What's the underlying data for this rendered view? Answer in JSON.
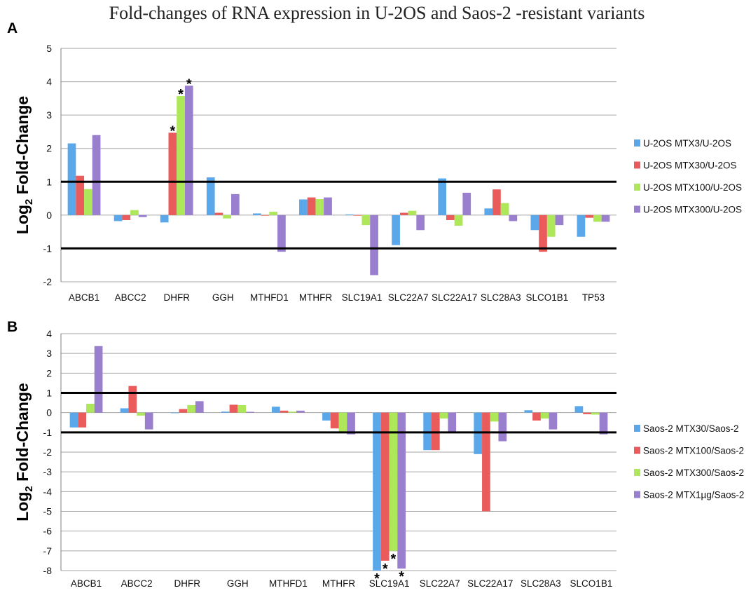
{
  "title": "Fold-changes of RNA expression in U-2OS and Saos-2 -resistant variants",
  "colors": {
    "blue": "#5aa7ea",
    "red": "#ea5b5b",
    "green": "#aee85a",
    "purple": "#9b7fcf",
    "grid": "#a6a6a6",
    "axis": "#7f7f7f",
    "threshold": "#000000"
  },
  "chart_data": [
    {
      "type": "bar",
      "panel": "A",
      "ylabel_main": "Log",
      "ylabel_sub": "2",
      "ylabel_rest": " Fold-Change",
      "ylim": [
        -2,
        5
      ],
      "yticks": [
        -2,
        -1,
        0,
        1,
        2,
        3,
        4,
        5
      ],
      "threshold_lines": [
        1,
        -1
      ],
      "categories": [
        "ABCB1",
        "ABCC2",
        "DHFR",
        "GGH",
        "MTHFD1",
        "MTHFR",
        "SLC19A1",
        "SLC22A7",
        "SLC22A17",
        "SLC28A3",
        "SLCO1B1",
        "TP53"
      ],
      "series": [
        {
          "name": "U-2OS MTX3/U-2OS",
          "color": "blue",
          "values": [
            2.15,
            -0.18,
            -0.22,
            1.13,
            0.05,
            0.47,
            0.02,
            -0.9,
            1.1,
            0.2,
            -0.45,
            -0.65
          ]
        },
        {
          "name": "U-2OS MTX30/U-2OS",
          "color": "red",
          "values": [
            1.18,
            -0.15,
            2.47,
            0.07,
            0.0,
            0.53,
            0.0,
            0.07,
            -0.15,
            0.77,
            -1.1,
            -0.08
          ]
        },
        {
          "name": "U-2OS MTX100/U-2OS",
          "color": "green",
          "values": [
            0.78,
            0.15,
            3.57,
            -0.1,
            0.1,
            0.48,
            -0.3,
            0.13,
            -0.32,
            0.36,
            -0.65,
            -0.2
          ]
        },
        {
          "name": "U-2OS MTX300/U-2OS",
          "color": "purple",
          "values": [
            2.4,
            -0.06,
            3.88,
            0.63,
            -1.1,
            0.53,
            -1.8,
            -0.45,
            0.67,
            -0.18,
            -0.3,
            -0.2
          ]
        }
      ],
      "significance": [
        {
          "category": 2,
          "series": 1
        },
        {
          "category": 2,
          "series": 2
        },
        {
          "category": 2,
          "series": 3
        }
      ],
      "annotation": "*"
    },
    {
      "type": "bar",
      "panel": "B",
      "ylabel_main": "Log",
      "ylabel_sub": "2",
      "ylabel_rest": " Fold-Change",
      "ylim": [
        -8,
        4
      ],
      "yticks": [
        -8,
        -7,
        -6,
        -5,
        -4,
        -3,
        -2,
        -1,
        0,
        1,
        2,
        3,
        4
      ],
      "threshold_lines": [
        1,
        -1
      ],
      "categories": [
        "ABCB1",
        "ABCC2",
        "DHFR",
        "GGH",
        "MTHFD1",
        "MTHFR",
        "SLC19A1",
        "SLC22A7",
        "SLC22A17",
        "SLC28A3",
        "SLCO1B1"
      ],
      "series": [
        {
          "name": "Saos-2 MTX30/Saos-2",
          "color": "blue",
          "values": [
            -0.75,
            0.22,
            0.0,
            0.05,
            0.3,
            -0.4,
            -8.0,
            -1.9,
            -2.1,
            0.12,
            0.33
          ]
        },
        {
          "name": "Saos-2 MTX100/Saos-2",
          "color": "red",
          "values": [
            -0.75,
            1.35,
            0.18,
            0.4,
            0.1,
            -0.8,
            -7.5,
            -1.9,
            -5.0,
            -0.4,
            -0.08
          ]
        },
        {
          "name": "Saos-2 MTX300/Saos-2",
          "color": "green",
          "values": [
            0.45,
            -0.15,
            0.38,
            0.38,
            0.05,
            -1.0,
            -7.0,
            -0.3,
            -0.45,
            -0.3,
            -0.1
          ]
        },
        {
          "name": "Saos-2 MTX1µg/Saos-2",
          "color": "purple",
          "values": [
            3.37,
            -0.85,
            0.58,
            0.04,
            0.1,
            -1.1,
            -7.9,
            -1.0,
            -1.45,
            -0.85,
            -1.1
          ]
        }
      ],
      "significance": [
        {
          "category": 6,
          "series": 0
        },
        {
          "category": 6,
          "series": 1
        },
        {
          "category": 6,
          "series": 2
        },
        {
          "category": 6,
          "series": 3
        }
      ],
      "annotation": "*"
    }
  ]
}
